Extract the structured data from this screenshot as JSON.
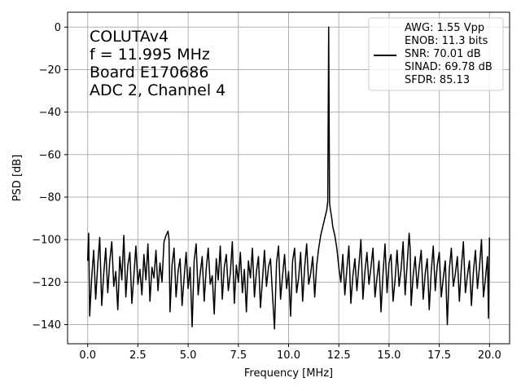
{
  "chart_data": {
    "type": "line",
    "xlabel": "Frequency [MHz]",
    "ylabel": "PSD [dB]",
    "xlim": [
      -1.0,
      21.0
    ],
    "ylim": [
      -149,
      7
    ],
    "xticks": [
      0.0,
      2.5,
      5.0,
      7.5,
      10.0,
      12.5,
      15.0,
      17.5,
      20.0
    ],
    "xtick_labels": [
      "0.0",
      "2.5",
      "5.0",
      "7.5",
      "10.0",
      "12.5",
      "15.0",
      "17.5",
      "20.0"
    ],
    "yticks": [
      0,
      -20,
      -40,
      -60,
      -80,
      -100,
      -120,
      -140
    ],
    "ytick_labels": [
      "0",
      "−20",
      "−40",
      "−60",
      "−80",
      "−100",
      "−120",
      "−140"
    ],
    "grid": true,
    "annotation": {
      "lines": [
        "COLUTAv4",
        "f = 11.995 MHz",
        "Board E170686",
        "ADC 2, Channel 4"
      ]
    },
    "legend": {
      "placement": "upper-right",
      "lines": [
        "AWG: 1.55 Vpp",
        "ENOB: 11.3 bits",
        "SNR: 70.01 dB",
        "SINAD: 69.78 dB",
        "SFDR: 85.13"
      ]
    },
    "series": [
      {
        "color": "#000000",
        "signal_frequency": 11.995,
        "signal_peak": 0,
        "noise_floor": -115,
        "points": [
          [
            0.0,
            -110
          ],
          [
            0.05,
            -97
          ],
          [
            0.1,
            -136
          ],
          [
            0.2,
            -118
          ],
          [
            0.3,
            -105
          ],
          [
            0.4,
            -128
          ],
          [
            0.5,
            -112
          ],
          [
            0.6,
            -99
          ],
          [
            0.7,
            -131
          ],
          [
            0.8,
            -116
          ],
          [
            0.9,
            -104
          ],
          [
            1.0,
            -125
          ],
          [
            1.1,
            -110
          ],
          [
            1.2,
            -101
          ],
          [
            1.3,
            -122
          ],
          [
            1.4,
            -115
          ],
          [
            1.5,
            -133
          ],
          [
            1.6,
            -108
          ],
          [
            1.7,
            -119
          ],
          [
            1.8,
            -98
          ],
          [
            1.9,
            -127
          ],
          [
            2.0,
            -112
          ],
          [
            2.1,
            -106
          ],
          [
            2.2,
            -130
          ],
          [
            2.3,
            -117
          ],
          [
            2.4,
            -103
          ],
          [
            2.5,
            -121
          ],
          [
            2.6,
            -114
          ],
          [
            2.7,
            -126
          ],
          [
            2.8,
            -107
          ],
          [
            2.9,
            -119
          ],
          [
            3.0,
            -102
          ],
          [
            3.1,
            -129
          ],
          [
            3.2,
            -113
          ],
          [
            3.3,
            -118
          ],
          [
            3.4,
            -105
          ],
          [
            3.5,
            -124
          ],
          [
            3.6,
            -111
          ],
          [
            3.7,
            -120
          ],
          [
            3.8,
            -101
          ],
          [
            3.9,
            -98
          ],
          [
            4.0,
            -96
          ],
          [
            4.05,
            -100
          ],
          [
            4.1,
            -134
          ],
          [
            4.2,
            -112
          ],
          [
            4.3,
            -104
          ],
          [
            4.4,
            -127
          ],
          [
            4.5,
            -115
          ],
          [
            4.6,
            -109
          ],
          [
            4.7,
            -131
          ],
          [
            4.8,
            -118
          ],
          [
            4.9,
            -106
          ],
          [
            5.0,
            -123
          ],
          [
            5.1,
            -113
          ],
          [
            5.2,
            -141
          ],
          [
            5.3,
            -110
          ],
          [
            5.4,
            -102
          ],
          [
            5.5,
            -126
          ],
          [
            5.6,
            -116
          ],
          [
            5.7,
            -108
          ],
          [
            5.8,
            -129
          ],
          [
            5.9,
            -114
          ],
          [
            6.0,
            -104
          ],
          [
            6.1,
            -121
          ],
          [
            6.2,
            -117
          ],
          [
            6.3,
            -135
          ],
          [
            6.4,
            -109
          ],
          [
            6.5,
            -119
          ],
          [
            6.6,
            -103
          ],
          [
            6.7,
            -128
          ],
          [
            6.8,
            -113
          ],
          [
            6.9,
            -107
          ],
          [
            7.0,
            -124
          ],
          [
            7.1,
            -116
          ],
          [
            7.2,
            -101
          ],
          [
            7.3,
            -130
          ],
          [
            7.4,
            -112
          ],
          [
            7.5,
            -120
          ],
          [
            7.6,
            -106
          ],
          [
            7.7,
            -125
          ],
          [
            7.8,
            -114
          ],
          [
            7.9,
            -134
          ],
          [
            8.0,
            -110
          ],
          [
            8.1,
            -118
          ],
          [
            8.2,
            -104
          ],
          [
            8.3,
            -127
          ],
          [
            8.4,
            -115
          ],
          [
            8.5,
            -108
          ],
          [
            8.6,
            -132
          ],
          [
            8.7,
            -119
          ],
          [
            8.8,
            -105
          ],
          [
            8.9,
            -122
          ],
          [
            9.0,
            -113
          ],
          [
            9.1,
            -109
          ],
          [
            9.2,
            -126
          ],
          [
            9.3,
            -142
          ],
          [
            9.4,
            -111
          ],
          [
            9.5,
            -103
          ],
          [
            9.6,
            -128
          ],
          [
            9.7,
            -117
          ],
          [
            9.8,
            -107
          ],
          [
            9.9,
            -123
          ],
          [
            10.0,
            -115
          ],
          [
            10.1,
            -136
          ],
          [
            10.2,
            -110
          ],
          [
            10.3,
            -104
          ],
          [
            10.4,
            -125
          ],
          [
            10.5,
            -118
          ],
          [
            10.6,
            -106
          ],
          [
            10.7,
            -129
          ],
          [
            10.8,
            -113
          ],
          [
            10.9,
            -102
          ],
          [
            11.0,
            -121
          ],
          [
            11.1,
            -116
          ],
          [
            11.2,
            -108
          ],
          [
            11.3,
            -127
          ],
          [
            11.4,
            -112
          ],
          [
            11.5,
            -104
          ],
          [
            11.6,
            -98
          ],
          [
            11.7,
            -94
          ],
          [
            11.8,
            -90
          ],
          [
            11.85,
            -88
          ],
          [
            11.9,
            -86
          ],
          [
            11.95,
            -82
          ],
          [
            11.995,
            0
          ],
          [
            12.04,
            -83
          ],
          [
            12.1,
            -87
          ],
          [
            12.15,
            -90
          ],
          [
            12.2,
            -94
          ],
          [
            12.3,
            -98
          ],
          [
            12.4,
            -104
          ],
          [
            12.5,
            -113
          ],
          [
            12.6,
            -120
          ],
          [
            12.7,
            -107
          ],
          [
            12.8,
            -126
          ],
          [
            12.9,
            -114
          ],
          [
            13.0,
            -103
          ],
          [
            13.1,
            -130
          ],
          [
            13.2,
            -117
          ],
          [
            13.3,
            -109
          ],
          [
            13.4,
            -124
          ],
          [
            13.5,
            -112
          ],
          [
            13.6,
            -100
          ],
          [
            13.7,
            -128
          ],
          [
            13.8,
            -115
          ],
          [
            13.9,
            -106
          ],
          [
            14.0,
            -121
          ],
          [
            14.1,
            -113
          ],
          [
            14.2,
            -104
          ],
          [
            14.3,
            -127
          ],
          [
            14.4,
            -118
          ],
          [
            14.5,
            -110
          ],
          [
            14.6,
            -134
          ],
          [
            14.7,
            -116
          ],
          [
            14.8,
            -102
          ],
          [
            14.9,
            -125
          ],
          [
            15.0,
            -111
          ],
          [
            15.1,
            -107
          ],
          [
            15.2,
            -129
          ],
          [
            15.3,
            -119
          ],
          [
            15.4,
            -105
          ],
          [
            15.5,
            -122
          ],
          [
            15.6,
            -114
          ],
          [
            15.7,
            -101
          ],
          [
            15.8,
            -126
          ],
          [
            15.9,
            -112
          ],
          [
            16.0,
            -97
          ],
          [
            16.05,
            -104
          ],
          [
            16.1,
            -131
          ],
          [
            16.2,
            -117
          ],
          [
            16.3,
            -108
          ],
          [
            16.4,
            -123
          ],
          [
            16.5,
            -113
          ],
          [
            16.6,
            -105
          ],
          [
            16.7,
            -128
          ],
          [
            16.8,
            -116
          ],
          [
            16.9,
            -109
          ],
          [
            17.0,
            -133
          ],
          [
            17.1,
            -115
          ],
          [
            17.2,
            -103
          ],
          [
            17.3,
            -124
          ],
          [
            17.4,
            -112
          ],
          [
            17.5,
            -106
          ],
          [
            17.6,
            -127
          ],
          [
            17.7,
            -118
          ],
          [
            17.8,
            -110
          ],
          [
            17.9,
            -140
          ],
          [
            18.0,
            -114
          ],
          [
            18.1,
            -104
          ],
          [
            18.2,
            -122
          ],
          [
            18.3,
            -116
          ],
          [
            18.4,
            -108
          ],
          [
            18.5,
            -129
          ],
          [
            18.6,
            -113
          ],
          [
            18.7,
            -101
          ],
          [
            18.8,
            -125
          ],
          [
            18.9,
            -117
          ],
          [
            19.0,
            -110
          ],
          [
            19.1,
            -131
          ],
          [
            19.2,
            -115
          ],
          [
            19.3,
            -105
          ],
          [
            19.4,
            -123
          ],
          [
            19.5,
            -113
          ],
          [
            19.6,
            -100
          ],
          [
            19.7,
            -127
          ],
          [
            19.8,
            -118
          ],
          [
            19.9,
            -108
          ],
          [
            19.95,
            -137
          ],
          [
            20.0,
            -99
          ]
        ]
      }
    ]
  }
}
